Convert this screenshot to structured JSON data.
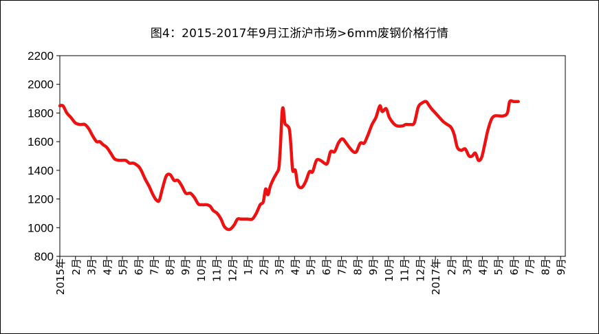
{
  "chart_data": {
    "type": "line",
    "title": "图4：2015-2017年9月江浙沪市场>6mm废钢价格行情",
    "xlabel": "",
    "ylabel": "",
    "ylim": [
      800,
      2200
    ],
    "yticks": [
      800,
      1000,
      1200,
      1400,
      1600,
      1800,
      2000,
      2200
    ],
    "xtick_labels": [
      "2015年",
      "2月",
      "3月",
      "4月",
      "5月",
      "6月",
      "7月",
      "8月",
      "9月",
      "10月",
      "11月",
      "12月",
      "1月",
      "2月",
      "3月",
      "4月",
      "5月",
      "6月",
      "7月",
      "8月",
      "9月",
      "10月",
      "11月",
      "12月",
      "2017年",
      "2月",
      "3月",
      "4月",
      "5月",
      "6月",
      "7月",
      "8月",
      "9月"
    ],
    "grid": false,
    "legend": "none",
    "series": [
      {
        "color": "#ee1111",
        "points": [
          [
            0,
            1850
          ],
          [
            0.2,
            1850
          ],
          [
            0.45,
            1800
          ],
          [
            0.7,
            1770
          ],
          [
            1.0,
            1730
          ],
          [
            1.3,
            1720
          ],
          [
            1.6,
            1720
          ],
          [
            1.85,
            1690
          ],
          [
            2.1,
            1640
          ],
          [
            2.35,
            1600
          ],
          [
            2.55,
            1600
          ],
          [
            2.75,
            1580
          ],
          [
            3.0,
            1560
          ],
          [
            3.25,
            1520
          ],
          [
            3.5,
            1480
          ],
          [
            3.8,
            1470
          ],
          [
            4.2,
            1470
          ],
          [
            4.45,
            1450
          ],
          [
            4.7,
            1450
          ],
          [
            5.0,
            1430
          ],
          [
            5.2,
            1400
          ],
          [
            5.45,
            1340
          ],
          [
            5.7,
            1290
          ],
          [
            5.95,
            1230
          ],
          [
            6.15,
            1195
          ],
          [
            6.35,
            1190
          ],
          [
            6.55,
            1270
          ],
          [
            6.8,
            1360
          ],
          [
            7.05,
            1370
          ],
          [
            7.3,
            1330
          ],
          [
            7.55,
            1330
          ],
          [
            7.8,
            1290
          ],
          [
            8.05,
            1240
          ],
          [
            8.35,
            1240
          ],
          [
            8.6,
            1210
          ],
          [
            8.85,
            1165
          ],
          [
            9.1,
            1160
          ],
          [
            9.4,
            1160
          ],
          [
            9.6,
            1150
          ],
          [
            9.8,
            1120
          ],
          [
            10.05,
            1100
          ],
          [
            10.3,
            1060
          ],
          [
            10.5,
            1010
          ],
          [
            10.7,
            990
          ],
          [
            10.9,
            990
          ],
          [
            11.15,
            1020
          ],
          [
            11.35,
            1060
          ],
          [
            11.6,
            1060
          ],
          [
            12.0,
            1060
          ],
          [
            12.3,
            1060
          ],
          [
            12.55,
            1100
          ],
          [
            12.8,
            1160
          ],
          [
            13.0,
            1180
          ],
          [
            13.15,
            1270
          ],
          [
            13.3,
            1230
          ],
          [
            13.45,
            1290
          ],
          [
            13.65,
            1340
          ],
          [
            13.85,
            1380
          ],
          [
            14.0,
            1420
          ],
          [
            14.1,
            1580
          ],
          [
            14.2,
            1800
          ],
          [
            14.28,
            1830
          ],
          [
            14.38,
            1730
          ],
          [
            14.55,
            1710
          ],
          [
            14.68,
            1680
          ],
          [
            14.78,
            1550
          ],
          [
            14.88,
            1400
          ],
          [
            15.05,
            1400
          ],
          [
            15.2,
            1300
          ],
          [
            15.45,
            1280
          ],
          [
            15.7,
            1320
          ],
          [
            15.95,
            1390
          ],
          [
            16.15,
            1390
          ],
          [
            16.4,
            1470
          ],
          [
            16.65,
            1470
          ],
          [
            16.9,
            1450
          ],
          [
            17.1,
            1450
          ],
          [
            17.3,
            1530
          ],
          [
            17.55,
            1530
          ],
          [
            17.8,
            1590
          ],
          [
            18.05,
            1620
          ],
          [
            18.3,
            1590
          ],
          [
            18.5,
            1560
          ],
          [
            18.75,
            1530
          ],
          [
            18.95,
            1530
          ],
          [
            19.2,
            1590
          ],
          [
            19.45,
            1590
          ],
          [
            19.7,
            1650
          ],
          [
            19.95,
            1720
          ],
          [
            20.2,
            1770
          ],
          [
            20.45,
            1850
          ],
          [
            20.6,
            1810
          ],
          [
            20.85,
            1830
          ],
          [
            21.05,
            1770
          ],
          [
            21.3,
            1730
          ],
          [
            21.55,
            1710
          ],
          [
            21.9,
            1710
          ],
          [
            22.1,
            1720
          ],
          [
            22.4,
            1720
          ],
          [
            22.65,
            1730
          ],
          [
            22.9,
            1840
          ],
          [
            23.15,
            1870
          ],
          [
            23.4,
            1880
          ],
          [
            23.55,
            1860
          ],
          [
            23.75,
            1830
          ],
          [
            24.0,
            1800
          ],
          [
            24.25,
            1770
          ],
          [
            24.5,
            1740
          ],
          [
            24.75,
            1720
          ],
          [
            25.0,
            1700
          ],
          [
            25.2,
            1650
          ],
          [
            25.4,
            1560
          ],
          [
            25.65,
            1540
          ],
          [
            25.9,
            1550
          ],
          [
            26.15,
            1500
          ],
          [
            26.35,
            1500
          ],
          [
            26.55,
            1520
          ],
          [
            26.75,
            1470
          ],
          [
            26.95,
            1490
          ],
          [
            27.15,
            1580
          ],
          [
            27.35,
            1680
          ],
          [
            27.6,
            1760
          ],
          [
            27.8,
            1780
          ],
          [
            28.05,
            1780
          ],
          [
            28.35,
            1780
          ],
          [
            28.6,
            1800
          ],
          [
            28.75,
            1880
          ],
          [
            29.0,
            1880
          ],
          [
            29.3,
            1880
          ]
        ]
      }
    ]
  }
}
